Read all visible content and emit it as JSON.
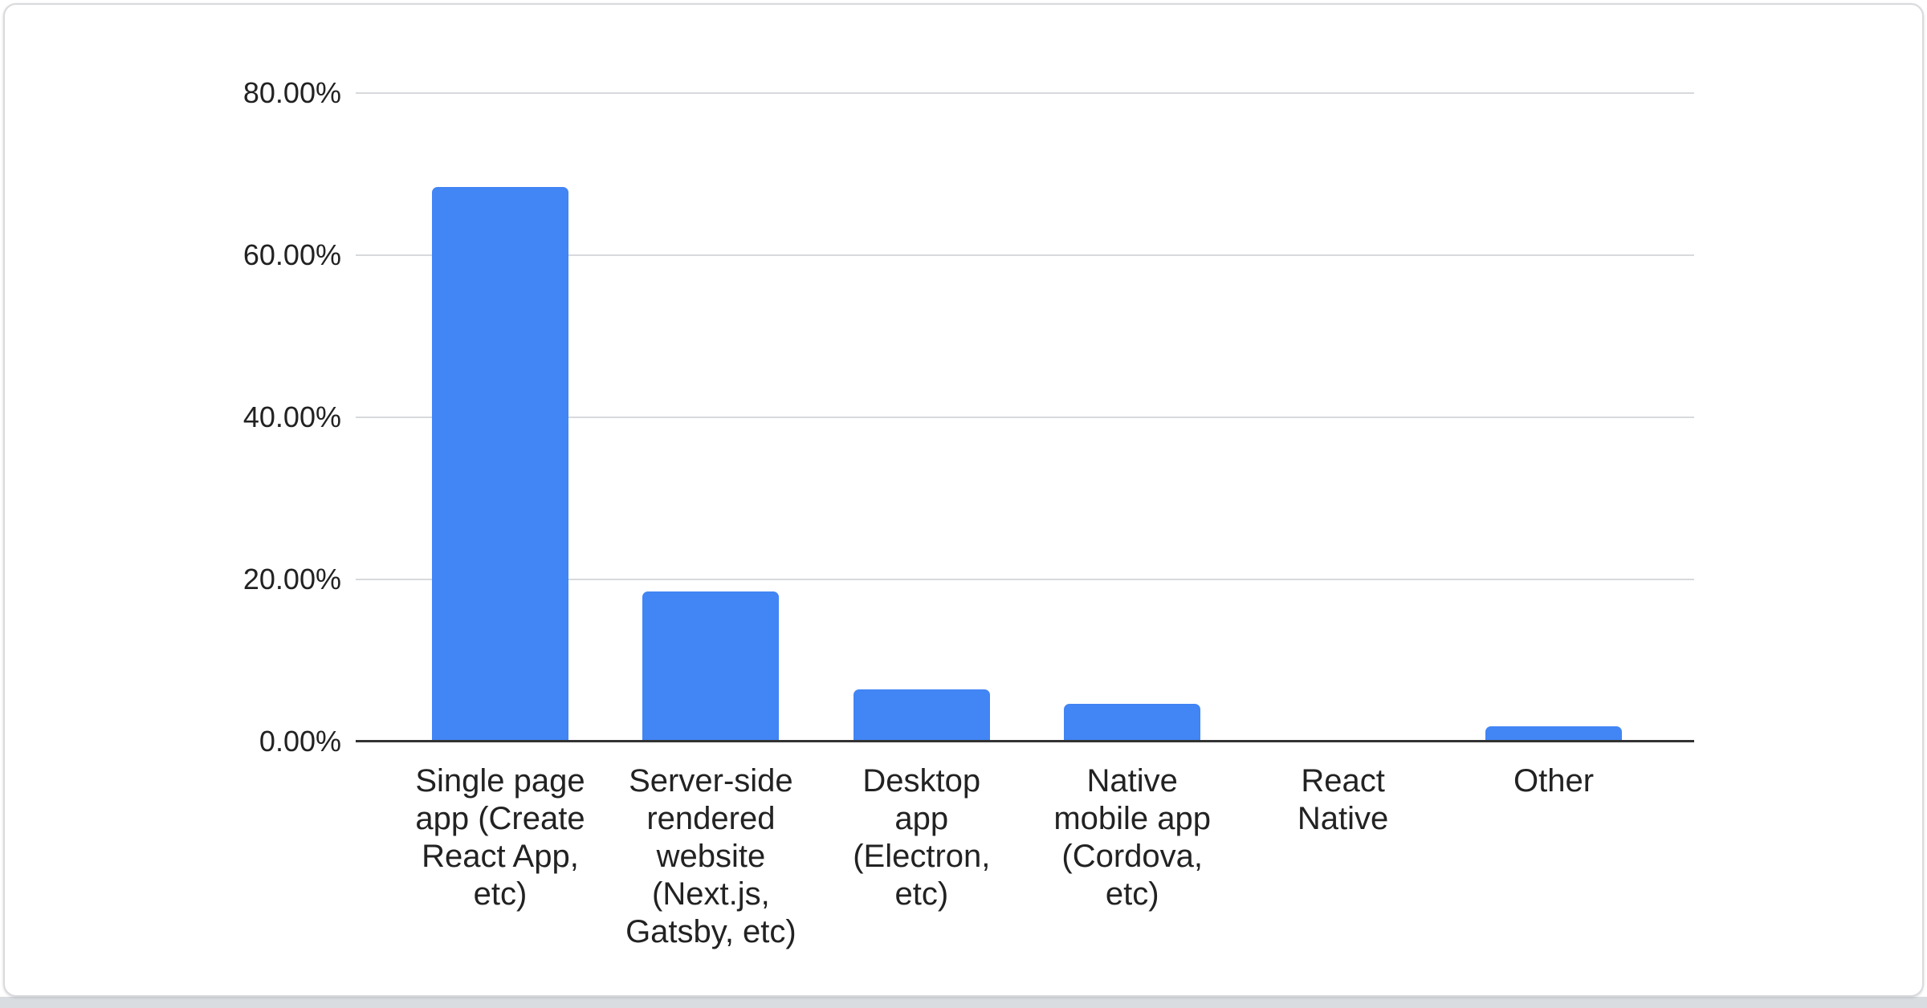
{
  "page": {
    "background_color": "#ffffff",
    "bottom_strip_color": "#d9dce0"
  },
  "card": {
    "background_color": "#ffffff",
    "border_color": "#d8dadd"
  },
  "chart_data": {
    "type": "bar",
    "title": "",
    "categories": [
      "Single page app (Create React App, etc)",
      "Server-side rendered website (Next.js, Gatsby, etc)",
      "Desktop app (Electron, etc)",
      "Native mobile app (Cordova, etc)",
      "React Native",
      "Other"
    ],
    "category_lines": [
      [
        "Single page",
        "app (Create",
        "React App,",
        "etc)"
      ],
      [
        "Server-side",
        "rendered",
        "website",
        "(Next.js,",
        "Gatsby, etc)"
      ],
      [
        "Desktop",
        "app",
        "(Electron,",
        "etc)"
      ],
      [
        "Native",
        "mobile app",
        "(Cordova,",
        "etc)"
      ],
      [
        "React",
        "Native"
      ],
      [
        "Other"
      ]
    ],
    "values": [
      68.4,
      18.5,
      6.4,
      4.7,
      0.2,
      1.9
    ],
    "value_unit": "percent",
    "xlabel": "",
    "ylabel": "",
    "ylim": [
      0,
      80
    ],
    "y_ticks": [
      {
        "value": 80,
        "label": "80.00%"
      },
      {
        "value": 60,
        "label": "60.00%"
      },
      {
        "value": 40,
        "label": "40.00%"
      },
      {
        "value": 20,
        "label": "20.00%"
      },
      {
        "value": 0,
        "label": "0.00%"
      }
    ],
    "grid": true,
    "legend": "none",
    "bar_color": "#4285f4",
    "gridline_color": "#d7d9dc",
    "axis_line_color": "#333333",
    "text_color": "#222222"
  }
}
